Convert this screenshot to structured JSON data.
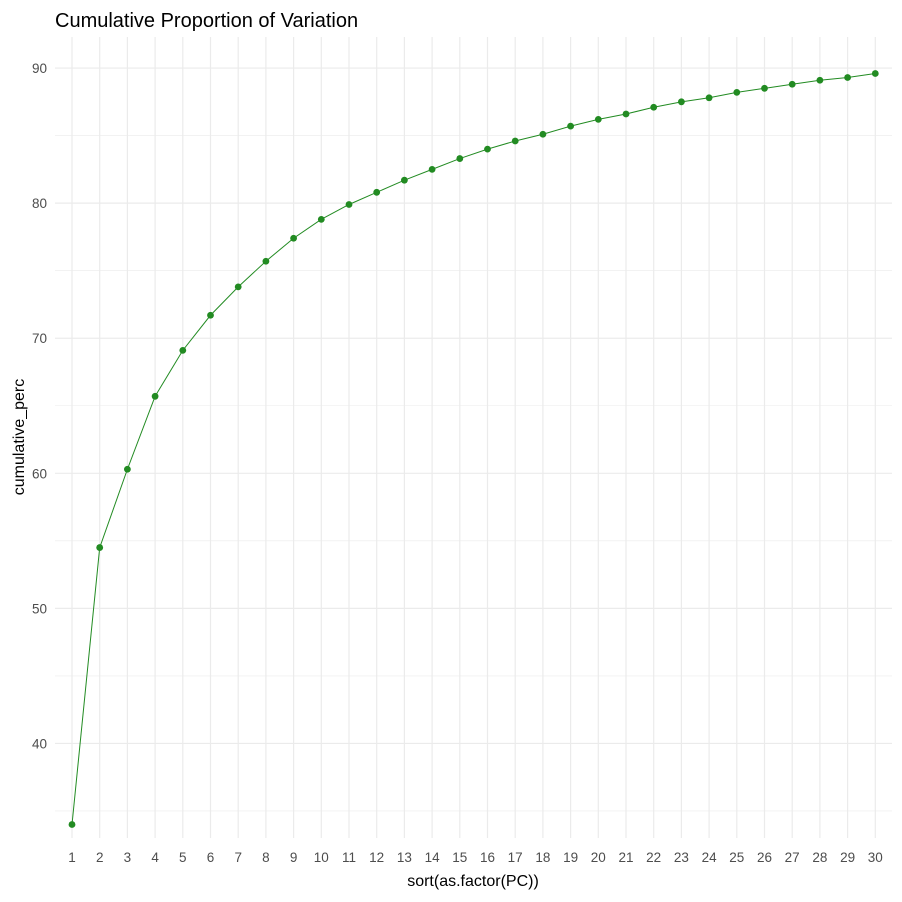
{
  "chart_data": {
    "type": "line",
    "title": "Cumulative Proportion of Variation",
    "xlabel": "sort(as.factor(PC))",
    "ylabel": "cumulative_perc",
    "categories": [
      "1",
      "2",
      "3",
      "4",
      "5",
      "6",
      "7",
      "8",
      "9",
      "10",
      "11",
      "12",
      "13",
      "14",
      "15",
      "16",
      "17",
      "18",
      "19",
      "20",
      "21",
      "22",
      "23",
      "24",
      "25",
      "26",
      "27",
      "28",
      "29",
      "30"
    ],
    "series": [
      {
        "values": [
          34.0,
          54.5,
          60.3,
          65.7,
          69.1,
          71.7,
          73.8,
          75.7,
          77.4,
          78.8,
          79.9,
          80.8,
          81.7,
          82.5,
          83.3,
          84.0,
          84.6,
          85.1,
          85.7,
          86.2,
          86.6,
          87.1,
          87.5,
          87.8,
          88.2,
          88.5,
          88.8,
          89.1,
          89.3,
          89.6
        ]
      }
    ],
    "y_ticks": [
      40,
      50,
      60,
      70,
      80,
      90
    ],
    "ylim": [
      33.0,
      92.3
    ],
    "grid": true,
    "legend": "none",
    "line_color": "#228b22",
    "point_color": "#228b22",
    "grid_color": "#ebebeb"
  }
}
